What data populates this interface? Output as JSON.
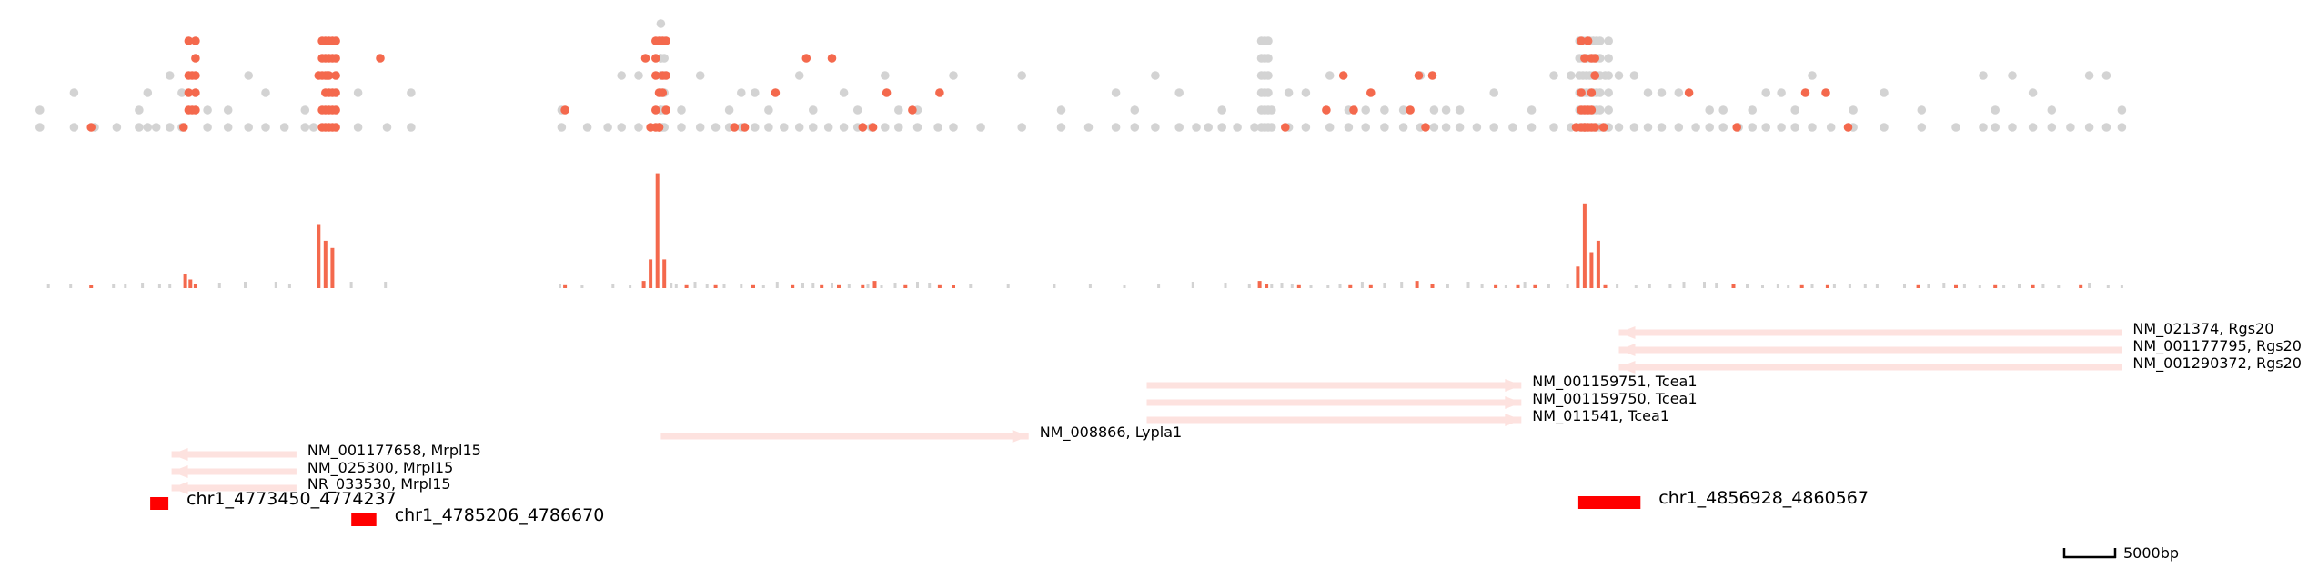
{
  "colors": {
    "highlight": "#f4694d",
    "background_mark": "#d3d3d3",
    "transcript": "#fde2df",
    "peak": "#ff0000",
    "text": "#000000"
  },
  "chart_data": {
    "type": "genome-browser",
    "coordinate_unit": "bp",
    "region": {
      "chrom": "chr1",
      "start": 4766000,
      "end": 4889000
    },
    "scale_bar": {
      "length_bp": 5000,
      "label": "5000bp"
    },
    "tracks": {
      "dot_strip": {
        "type": "scatter",
        "levels": 8,
        "highlight_positions": [
          4770000,
          4775400,
          4775900,
          4783300,
          4783800,
          4786900,
          4797700,
          4802400,
          4802700,
          4803200,
          4807600,
          4808200,
          4810000,
          4811800,
          4813300,
          4815100,
          4816500,
          4815700,
          4818000,
          4819600,
          4839800,
          4842200,
          4843800,
          4847100,
          4847600,
          4848000,
          4856800,
          4857300,
          4857900,
          4858400,
          4863400,
          4866200,
          4870200,
          4871400,
          4872700,
          4843200,
          4844800,
          4848400
        ],
        "highlight_column_extra": [
          4775700,
          4775900,
          4776100,
          4783500,
          4783700,
          4783900,
          4784100,
          4784300,
          4803000,
          4803200,
          4803400,
          4803600,
          4857100,
          4857300,
          4857500,
          4857700,
          4857900
        ],
        "background_positions": [
          4767000,
          4769000,
          4770200,
          4771500,
          4772800,
          4773300,
          4773800,
          4774600,
          4775300,
          4776800,
          4778000,
          4779200,
          4780200,
          4781300,
          4782500,
          4783000,
          4785600,
          4787300,
          4788700,
          4797500,
          4799000,
          4800200,
          4801000,
          4802000,
          4803400,
          4804500,
          4805600,
          4806500,
          4807300,
          4808000,
          4808800,
          4809600,
          4810500,
          4811400,
          4812200,
          4813100,
          4814000,
          4814800,
          4815600,
          4816400,
          4817200,
          4818300,
          4819500,
          4820400,
          4822000,
          4824400,
          4826700,
          4828300,
          4829900,
          4831000,
          4832200,
          4833600,
          4834600,
          4835300,
          4836100,
          4837000,
          4838000,
          4839000,
          4840000,
          4841000,
          4842400,
          4843500,
          4844500,
          4845600,
          4846700,
          4847700,
          4848500,
          4849200,
          4850000,
          4851000,
          4852000,
          4853100,
          4854200,
          4855500,
          4856500,
          4858500,
          4859300,
          4860200,
          4861000,
          4861800,
          4862800,
          4863800,
          4864600,
          4865400,
          4866300,
          4867100,
          4867900,
          4868800,
          4869600,
          4870600,
          4871700,
          4873000,
          4874800,
          4877000,
          4879000,
          4880600,
          4881300,
          4882300,
          4883500,
          4884600,
          4885700,
          4886800,
          4887800,
          4888700
        ],
        "background_column_extra": [
          4803300,
          4803500,
          4838400,
          4838600,
          4838800,
          4857000,
          4857200,
          4857400,
          4857600,
          4857800,
          4858000,
          4858200,
          4858700
        ]
      },
      "coverage": {
        "type": "bar",
        "highlight_bars": [
          [
            4770000,
            1
          ],
          [
            4775500,
            10
          ],
          [
            4775800,
            6
          ],
          [
            4776100,
            3
          ],
          [
            4783300,
            44
          ],
          [
            4783700,
            33
          ],
          [
            4784100,
            28
          ],
          [
            4797700,
            2
          ],
          [
            4802300,
            5
          ],
          [
            4802700,
            20
          ],
          [
            4803100,
            80
          ],
          [
            4803500,
            20
          ],
          [
            4804800,
            2
          ],
          [
            4806500,
            2
          ],
          [
            4808700,
            2
          ],
          [
            4811000,
            2
          ],
          [
            4812700,
            2
          ],
          [
            4813700,
            2
          ],
          [
            4815100,
            2
          ],
          [
            4815800,
            5
          ],
          [
            4817600,
            2
          ],
          [
            4819600,
            2
          ],
          [
            4820400,
            1
          ],
          [
            4838300,
            5
          ],
          [
            4838700,
            3
          ],
          [
            4843600,
            2
          ],
          [
            4847500,
            5
          ],
          [
            4848400,
            3
          ],
          [
            4856900,
            15
          ],
          [
            4857300,
            59
          ],
          [
            4857700,
            25
          ],
          [
            4858100,
            33
          ],
          [
            4858500,
            2
          ],
          [
            4840600,
            2
          ],
          [
            4844800,
            2
          ],
          [
            4852100,
            2
          ],
          [
            4853400,
            2
          ],
          [
            4854400,
            2
          ],
          [
            4866000,
            3
          ],
          [
            4870000,
            2
          ],
          [
            4871500,
            2
          ],
          [
            4876800,
            2
          ],
          [
            4879000,
            2
          ],
          [
            4881300,
            2
          ],
          [
            4883500,
            2
          ],
          [
            4886300,
            2
          ],
          [
            4895000,
            0
          ]
        ],
        "background_bars": [
          4767500,
          4768800,
          4771300,
          4772000,
          4773000,
          4774000,
          4774600,
          4777500,
          4779000,
          4780800,
          4781600,
          4785200,
          4787200,
          4797400,
          4798700,
          4800500,
          4801500,
          4803900,
          4804200,
          4805300,
          4806000,
          4807000,
          4808000,
          4809300,
          4810100,
          4811600,
          4812200,
          4813300,
          4814300,
          4815400,
          4816200,
          4817000,
          4818300,
          4819000,
          4821400,
          4823600,
          4826300,
          4828400,
          4830400,
          4832400,
          4834400,
          4836300,
          4837700,
          4839000,
          4839600,
          4840200,
          4841300,
          4842300,
          4843000,
          4844300,
          4845600,
          4846600,
          4849300,
          4850500,
          4851300,
          4852700,
          4853800,
          4855200,
          4856300,
          4859200,
          4860300,
          4861100,
          4862300,
          4863100,
          4864300,
          4865000,
          4866800,
          4867700,
          4868600,
          4869200,
          4870600,
          4871900,
          4872800,
          4873700,
          4874400,
          4876000,
          4877400,
          4878300,
          4879500,
          4880400,
          4881800,
          4882700,
          4884100,
          4885000,
          4886800,
          4887900,
          4888700
        ]
      },
      "transcripts": [
        {
          "label": "NM_021374, Rgs20",
          "start": 4859300,
          "end": 4888700,
          "strand": "-"
        },
        {
          "label": "NM_001177795, Rgs20",
          "start": 4859300,
          "end": 4888700,
          "strand": "-"
        },
        {
          "label": "NM_001290372, Rgs20",
          "start": 4859300,
          "end": 4888700,
          "strand": "-"
        },
        {
          "label": "NM_001159751, Tcea1",
          "start": 4831700,
          "end": 4853600,
          "strand": "+"
        },
        {
          "label": "NM_001159750, Tcea1",
          "start": 4831700,
          "end": 4853600,
          "strand": "+"
        },
        {
          "label": "NM_011541, Tcea1",
          "start": 4831700,
          "end": 4853600,
          "strand": "+"
        },
        {
          "label": "NM_008866, Lypla1",
          "start": 4803300,
          "end": 4824800,
          "strand": "+"
        },
        {
          "label": "NM_001177658, Mrpl15",
          "start": 4774700,
          "end": 4782000,
          "strand": "-"
        },
        {
          "label": "NM_025300, Mrpl15",
          "start": 4774700,
          "end": 4782000,
          "strand": "-"
        },
        {
          "label": "NR_033530, Mrpl15",
          "start": 4774700,
          "end": 4782000,
          "strand": "-"
        }
      ],
      "peaks": [
        {
          "label": "chr1_4773450_4774237",
          "start": 4773450,
          "end": 4774237
        },
        {
          "label": "chr1_4785206_4786670",
          "start": 4785206,
          "end": 4786670
        },
        {
          "label": "chr1_4856928_4860567",
          "start": 4856928,
          "end": 4860567
        }
      ]
    }
  }
}
